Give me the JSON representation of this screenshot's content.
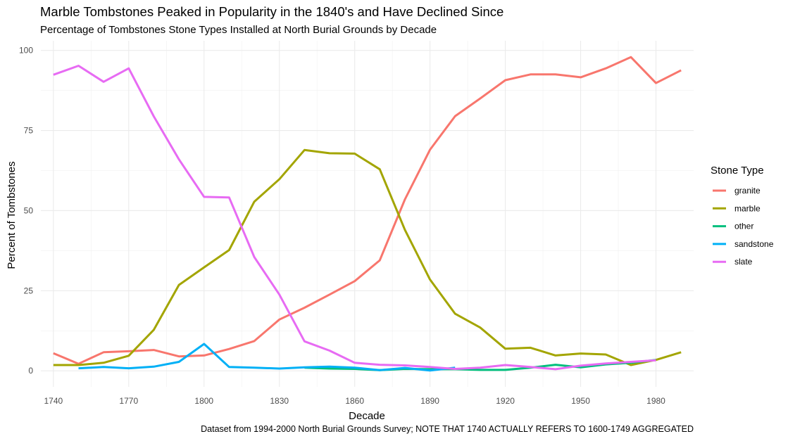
{
  "chart_data": {
    "type": "line",
    "title": "Marble Tombstones Peaked in Popularity in the 1840's and Have Declined Since",
    "subtitle": "Percentage of Tombstones Stone Types Installed at North Burial Grounds by Decade",
    "caption": "Dataset from 1994-2000 North Burial Grounds Survey; NOTE THAT 1740 ACTUALLY REFERS TO 1600-1749 AGGREGATED",
    "xlabel": "Decade",
    "ylabel": "Percent of Tombstones",
    "xlim": [
      1735,
      1995
    ],
    "ylim": [
      -5,
      103
    ],
    "x_ticks": [
      1740,
      1770,
      1800,
      1830,
      1860,
      1890,
      1920,
      1950,
      1980
    ],
    "y_ticks": [
      0,
      25,
      50,
      75,
      100
    ],
    "grid": true,
    "legend_title": "Stone Type",
    "legend_position": "right",
    "series": [
      {
        "name": "granite",
        "color": "#F8766D",
        "x": [
          1740,
          1750,
          1760,
          1770,
          1780,
          1790,
          1800,
          1810,
          1820,
          1830,
          1840,
          1850,
          1860,
          1870,
          1880,
          1890,
          1900,
          1910,
          1920,
          1930,
          1940,
          1950,
          1960,
          1970,
          1980,
          1990
        ],
        "y": [
          5.5,
          2.2,
          5.8,
          6.1,
          6.5,
          4.5,
          4.8,
          6.8,
          9.3,
          16.0,
          19.7,
          23.8,
          28.0,
          34.5,
          53.5,
          69.0,
          79.5,
          85.0,
          90.7,
          92.5,
          92.5,
          91.6,
          94.4,
          97.9,
          89.8,
          93.8
        ]
      },
      {
        "name": "marble",
        "color": "#A3A500",
        "x": [
          1740,
          1750,
          1760,
          1770,
          1780,
          1790,
          1800,
          1810,
          1820,
          1830,
          1840,
          1850,
          1860,
          1870,
          1880,
          1890,
          1900,
          1910,
          1920,
          1930,
          1940,
          1950,
          1960,
          1970,
          1980,
          1990
        ],
        "y": [
          1.8,
          1.8,
          2.5,
          4.7,
          12.8,
          26.8,
          32.3,
          37.7,
          52.8,
          59.8,
          68.9,
          67.9,
          67.8,
          62.9,
          44.0,
          28.5,
          17.8,
          13.5,
          6.9,
          7.2,
          4.8,
          5.4,
          5.1,
          1.8,
          3.4,
          5.8
        ]
      },
      {
        "name": "other",
        "color": "#00BF7D",
        "x": [
          1840,
          1850,
          1860,
          1870,
          1880,
          1890,
          1900,
          1910,
          1920,
          1930,
          1940,
          1950,
          1960,
          1970,
          1980
        ],
        "y": [
          1.0,
          0.7,
          0.6,
          0.2,
          0.6,
          0.5,
          0.5,
          0.3,
          0.3,
          1.0,
          1.9,
          1.1,
          2.0,
          2.5,
          3.4
        ]
      },
      {
        "name": "sandstone",
        "color": "#00B0F6",
        "x": [
          1750,
          1760,
          1770,
          1780,
          1790,
          1800,
          1810,
          1820,
          1830,
          1840,
          1850,
          1860,
          1870,
          1880,
          1890,
          1900
        ],
        "y": [
          0.8,
          1.2,
          0.8,
          1.3,
          2.8,
          8.4,
          1.2,
          1.0,
          0.7,
          1.1,
          1.3,
          1.0,
          0.2,
          0.9,
          0.1,
          1.0
        ]
      },
      {
        "name": "slate",
        "color": "#E76BF3",
        "x": [
          1740,
          1750,
          1760,
          1770,
          1780,
          1790,
          1800,
          1810,
          1820,
          1830,
          1840,
          1850,
          1860,
          1870,
          1880,
          1890,
          1900,
          1910,
          1920,
          1930,
          1940,
          1950,
          1960,
          1970,
          1980
        ],
        "y": [
          92.4,
          95.2,
          90.2,
          94.4,
          79.4,
          66.0,
          54.3,
          54.1,
          35.5,
          23.8,
          9.2,
          6.3,
          2.5,
          1.9,
          1.7,
          1.2,
          0.6,
          1.0,
          1.8,
          1.2,
          0.5,
          1.6,
          2.3,
          2.8,
          3.3
        ]
      }
    ]
  }
}
